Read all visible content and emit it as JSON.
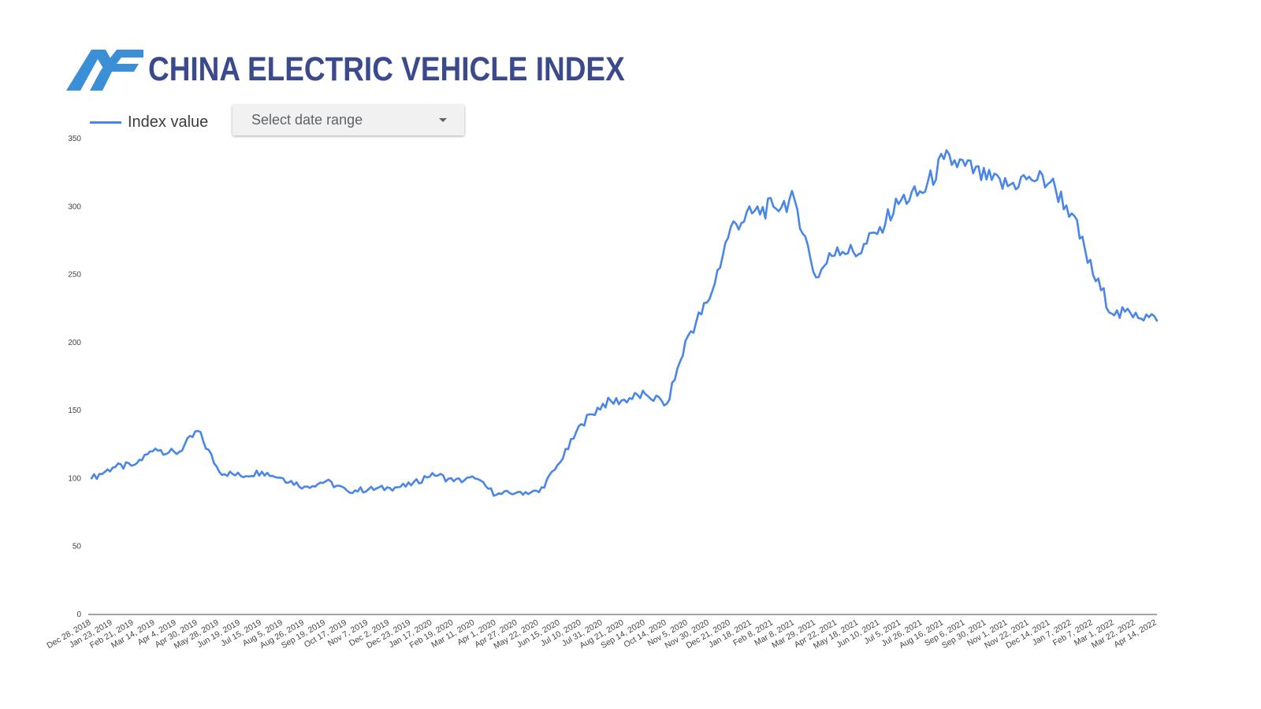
{
  "header": {
    "title": "CHINA ELECTRIC VEHICLE INDEX",
    "logo_icon": "af-logo-icon"
  },
  "legend": {
    "label": "Index value"
  },
  "controls": {
    "date_range_label": "Select date range"
  },
  "colors": {
    "line": "#4a86e8",
    "title": "#3b4a8c",
    "logo": "#3a8fd6"
  },
  "chart_data": {
    "type": "line",
    "ylim": [
      0,
      350
    ],
    "y_ticks": [
      "0",
      "50",
      "100",
      "150",
      "200",
      "250",
      "300",
      "350"
    ],
    "x_tick_labels": [
      "Dec 28, 2018",
      "Jan 23, 2019",
      "Feb 21, 2019",
      "Mar 14, 2019",
      "Apr 4, 2019",
      "Apr 30, 2019",
      "May 28, 2019",
      "Jun 19, 2019",
      "Jul 15, 2019",
      "Aug 5, 2019",
      "Aug 26, 2019",
      "Sep 19, 2019",
      "Oct 17, 2019",
      "Nov 7, 2019",
      "Dec 2, 2019",
      "Dec 23, 2019",
      "Jan 17, 2020",
      "Feb 19, 2020",
      "Mar 11, 2020",
      "Apr 1, 2020",
      "Apr 27, 2020",
      "May 22, 2020",
      "Jun 15, 2020",
      "Jul 10, 2020",
      "Jul 31, 2020",
      "Aug 21, 2020",
      "Sep 14, 2020",
      "Oct 14, 2020",
      "Nov 5, 2020",
      "Nov 30, 2020",
      "Dec 21, 2020",
      "Jan 18, 2021",
      "Feb 8, 2021",
      "Mar 8, 2021",
      "Mar 29, 2021",
      "Apr 22, 2021",
      "May 18, 2021",
      "Jun 10, 2021",
      "Jul 5, 2021",
      "Jul 26, 2021",
      "Aug 16, 2021",
      "Sep 6, 2021",
      "Sep 30, 2021",
      "Nov 1, 2021",
      "Nov 22, 2021",
      "Dec 14, 2021",
      "Jan 7, 2022",
      "Feb 7, 2022",
      "Mar 1, 2022",
      "Mar 22, 2022",
      "Apr 14, 2022"
    ],
    "series": [
      {
        "name": "Index value",
        "x": [
          "Dec 28, 2018",
          "Jan 23, 2019",
          "Feb 21, 2019",
          "Mar 14, 2019",
          "Apr 4, 2019",
          "Apr 30, 2019",
          "May 28, 2019",
          "Jun 19, 2019",
          "Jul 15, 2019",
          "Aug 5, 2019",
          "Aug 26, 2019",
          "Sep 19, 2019",
          "Oct 17, 2019",
          "Nov 7, 2019",
          "Dec 2, 2019",
          "Dec 23, 2019",
          "Jan 17, 2020",
          "Feb 19, 2020",
          "Mar 11, 2020",
          "Apr 1, 2020",
          "Apr 27, 2020",
          "May 22, 2020",
          "Jun 15, 2020",
          "Jul 10, 2020",
          "Jul 31, 2020",
          "Aug 21, 2020",
          "Sep 14, 2020",
          "Oct 14, 2020",
          "Nov 5, 2020",
          "Nov 30, 2020",
          "Dec 21, 2020",
          "Jan 18, 2021",
          "Feb 8, 2021",
          "Mar 8, 2021",
          "Mar 29, 2021",
          "Apr 22, 2021",
          "May 18, 2021",
          "Jun 10, 2021",
          "Jul 5, 2021",
          "Jul 26, 2021",
          "Aug 16, 2021",
          "Sep 6, 2021",
          "Sep 30, 2021",
          "Nov 1, 2021",
          "Nov 22, 2021",
          "Dec 14, 2021",
          "Jan 7, 2022",
          "Feb 7, 2022",
          "Mar 1, 2022",
          "Mar 22, 2022",
          "Apr 14, 2022"
        ],
        "values": [
          100,
          108,
          110,
          122,
          118,
          135,
          105,
          102,
          105,
          100,
          94,
          98,
          91,
          92,
          93,
          95,
          104,
          98,
          100,
          88,
          90,
          90,
          112,
          140,
          155,
          158,
          162,
          155,
          205,
          232,
          285,
          295,
          300,
          305,
          248,
          270,
          265,
          285,
          305,
          310,
          335,
          330,
          320,
          315,
          322,
          318,
          295,
          250,
          220,
          222,
          216
        ]
      }
    ]
  }
}
